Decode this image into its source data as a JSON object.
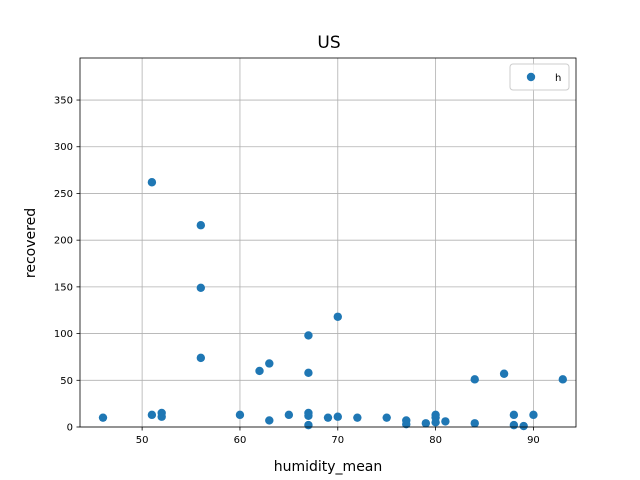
{
  "chart_data": {
    "type": "scatter",
    "title": "US",
    "xlabel": "humidity_mean",
    "ylabel": "recovered",
    "xlim": [
      43.65,
      94.35
    ],
    "ylim": [
      0,
      395
    ],
    "xticks": [
      50,
      60,
      70,
      80,
      90
    ],
    "yticks": [
      0,
      50,
      100,
      150,
      200,
      250,
      300,
      350
    ],
    "grid": true,
    "legend_position": "top-right",
    "colors": {
      "series": "#1f77b4"
    },
    "series": [
      {
        "name": "h",
        "points": [
          [
            46,
            10
          ],
          [
            51,
            262
          ],
          [
            51,
            13
          ],
          [
            52,
            15
          ],
          [
            52,
            11
          ],
          [
            56,
            216
          ],
          [
            56,
            149
          ],
          [
            56,
            74
          ],
          [
            60,
            13
          ],
          [
            62,
            60
          ],
          [
            63,
            68
          ],
          [
            63,
            7
          ],
          [
            65,
            13
          ],
          [
            67,
            98
          ],
          [
            67,
            58
          ],
          [
            67,
            15
          ],
          [
            67,
            12
          ],
          [
            67,
            2
          ],
          [
            69,
            10
          ],
          [
            70,
            118
          ],
          [
            70,
            11
          ],
          [
            72,
            10
          ],
          [
            75,
            10
          ],
          [
            77,
            7
          ],
          [
            77,
            3
          ],
          [
            79,
            4
          ],
          [
            80,
            13
          ],
          [
            80,
            10
          ],
          [
            80,
            5
          ],
          [
            81,
            6
          ],
          [
            84,
            51
          ],
          [
            84,
            4
          ],
          [
            87,
            57
          ],
          [
            88,
            13
          ],
          [
            88,
            2
          ],
          [
            89,
            1
          ],
          [
            90,
            13
          ],
          [
            93,
            51
          ]
        ]
      }
    ]
  }
}
